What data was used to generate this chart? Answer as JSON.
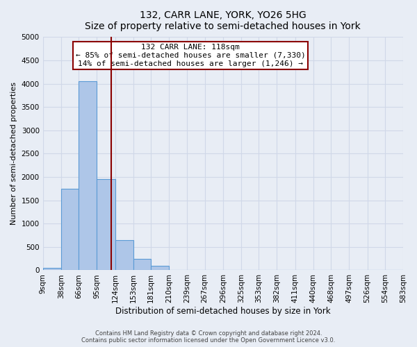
{
  "title": "132, CARR LANE, YORK, YO26 5HG",
  "subtitle": "Size of property relative to semi-detached houses in York",
  "xlabel": "Distribution of semi-detached houses by size in York",
  "ylabel": "Number of semi-detached properties",
  "bin_edges": [
    9,
    38,
    66,
    95,
    124,
    153,
    181,
    210,
    239,
    267,
    296,
    325,
    353,
    382,
    411,
    440,
    468,
    497,
    526,
    554,
    583
  ],
  "bin_counts": [
    50,
    1750,
    4050,
    1960,
    650,
    240,
    90,
    0,
    0,
    0,
    0,
    0,
    0,
    0,
    0,
    0,
    0,
    0,
    0,
    0
  ],
  "bar_color": "#aec6e8",
  "bar_edge_color": "#5b9bd5",
  "property_value": 118,
  "vline_color": "#8b0000",
  "annotation_title": "132 CARR LANE: 118sqm",
  "annotation_line1": "← 85% of semi-detached houses are smaller (7,330)",
  "annotation_line2": "14% of semi-detached houses are larger (1,246) →",
  "annotation_box_color": "#ffffff",
  "annotation_box_edge_color": "#8b0000",
  "ylim": [
    0,
    5000
  ],
  "yticks": [
    0,
    500,
    1000,
    1500,
    2000,
    2500,
    3000,
    3500,
    4000,
    4500,
    5000
  ],
  "grid_color": "#d0d8e8",
  "bg_color": "#e8edf5",
  "plot_bg_color": "#e8edf5",
  "footer_line1": "Contains HM Land Registry data © Crown copyright and database right 2024.",
  "footer_line2": "Contains public sector information licensed under the Open Government Licence v3.0."
}
